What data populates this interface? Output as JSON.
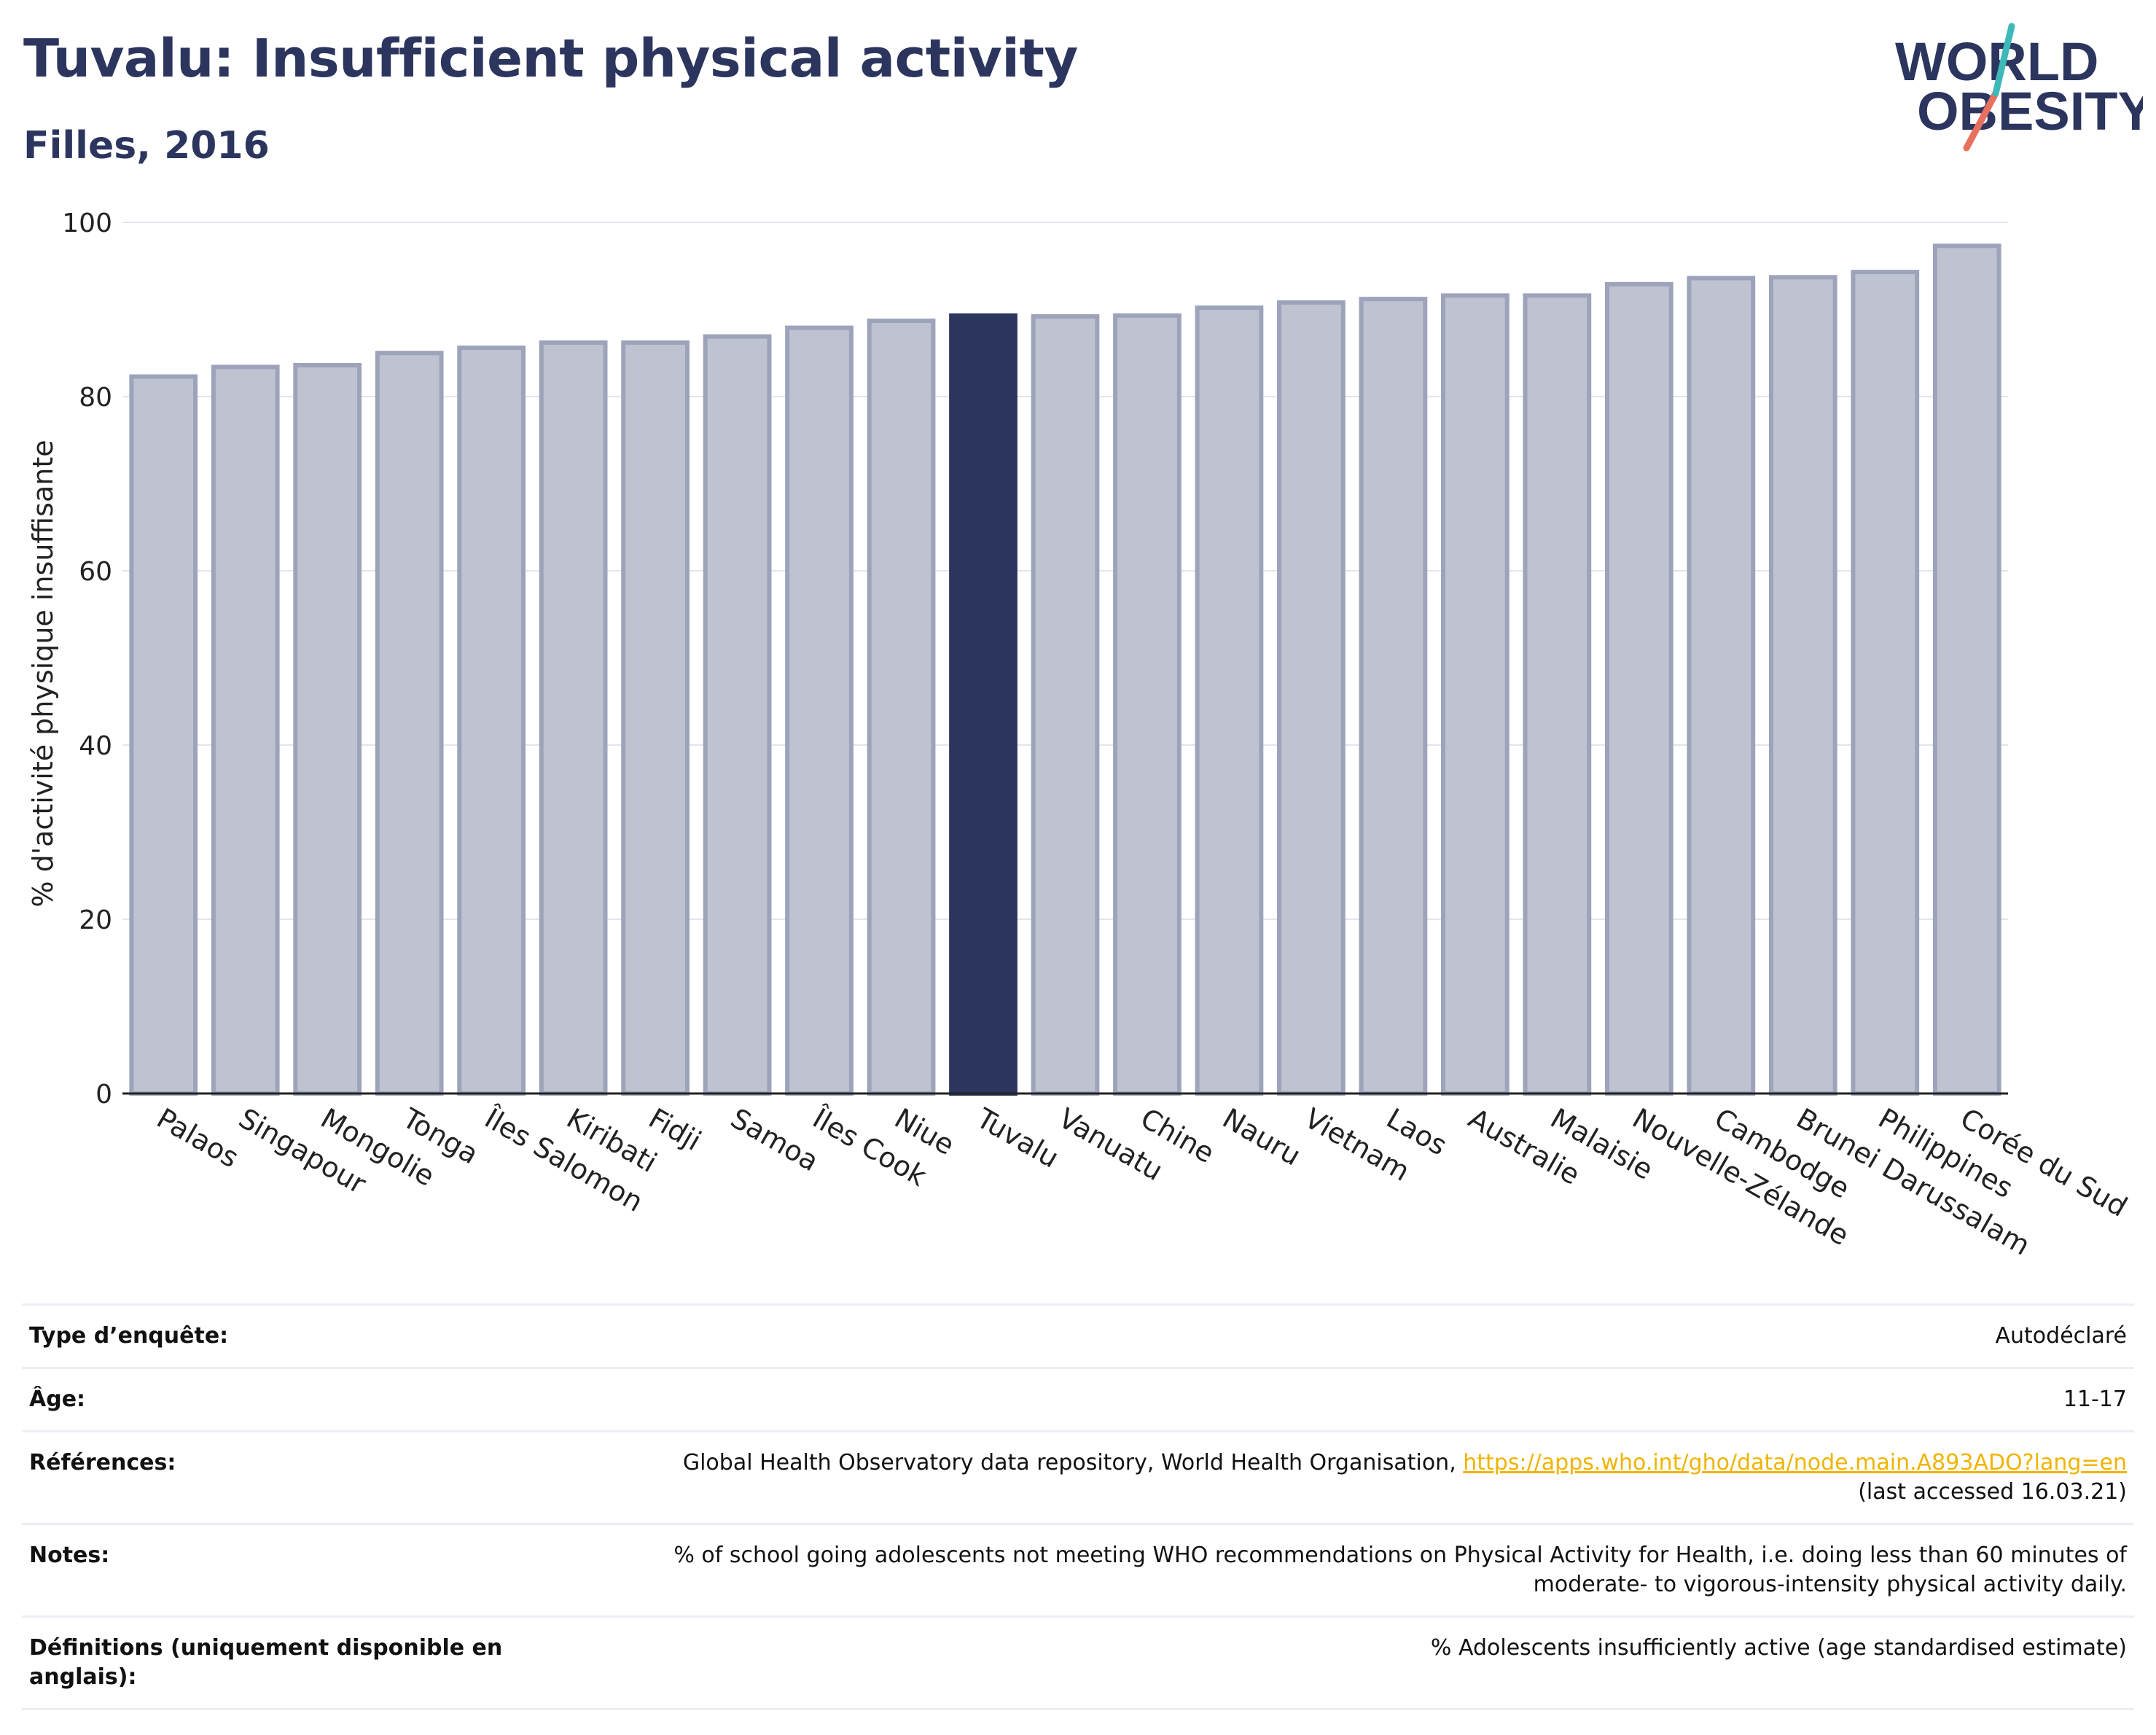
{
  "header": {
    "title": "Tuvalu: Insufficient physical activity",
    "subtitle": "Filles, 2016"
  },
  "logo": {
    "line1": "WORLD",
    "line2": "OBESITY"
  },
  "chart_data": {
    "type": "bar",
    "ylabel": "% d'activité physique insuffisante",
    "ylim": [
      0,
      100
    ],
    "yticks": [
      0,
      20,
      40,
      60,
      80,
      100
    ],
    "grid": true,
    "highlight": "Tuvalu",
    "categories": [
      "Palaos",
      "Singapour",
      "Mongolie",
      "Tonga",
      "Îles Salomon",
      "Kiribati",
      "Fidji",
      "Samoa",
      "Îles Cook",
      "Niue",
      "Tuvalu",
      "Vanuatu",
      "Chine",
      "Nauru",
      "Vietnam",
      "Laos",
      "Australie",
      "Malaisie",
      "Nouvelle-Zélande",
      "Cambodge",
      "Brunei Darussalam",
      "Philippines",
      "Corée du Sud"
    ],
    "values": [
      82.3,
      83.4,
      83.6,
      85.0,
      85.6,
      86.2,
      86.2,
      86.9,
      87.9,
      88.7,
      89.3,
      89.2,
      89.3,
      90.2,
      90.8,
      91.2,
      91.6,
      91.6,
      92.9,
      93.6,
      93.7,
      94.3,
      97.3
    ],
    "colors": {
      "bar": "#bfc2d0",
      "bar_edge": "#9da3ba",
      "highlight": "#2b355e"
    }
  },
  "info": {
    "survey_label": "Type d’enquête:",
    "survey_value": "Autodéclaré",
    "age_label": "Âge:",
    "age_value": "11-17",
    "ref_label": "Références:",
    "ref_text": "Global Health Observatory data repository, World Health Organisation, ",
    "ref_link": "https://apps.who.int/gho/data/node.main.A893ADO?lang=en",
    "ref_access": "(last accessed 16.03.21)",
    "notes_label": "Notes:",
    "notes_line1": "% of school going adolescents not meeting WHO recommendations on Physical Activity for Health, i.e. doing less than 60 minutes of",
    "notes_line2": "moderate- to vigorous-intensity physical activity daily.",
    "def_label": "Définitions (uniquement disponible en anglais):",
    "def_value": "% Adolescents insufficiently active (age standardised estimate)"
  }
}
